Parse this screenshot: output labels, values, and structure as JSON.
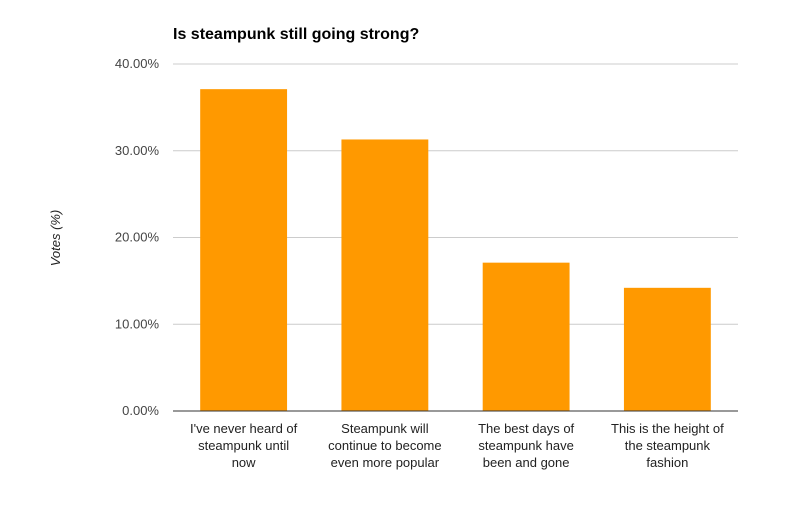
{
  "chart_data": {
    "type": "bar",
    "title": "Is steampunk still going strong?",
    "ylabel": "Votes (%)",
    "xlabel": "",
    "ylim": [
      0,
      40
    ],
    "yticks": [
      "0.00%",
      "10.00%",
      "20.00%",
      "30.00%",
      "40.00%"
    ],
    "ytick_values": [
      0,
      10,
      20,
      30,
      40
    ],
    "categories": [
      [
        "I've never heard of",
        "steampunk until",
        "now"
      ],
      [
        "Steampunk will",
        "continue to become",
        "even more popular"
      ],
      [
        "The best days of",
        "steampunk have",
        "been and gone"
      ],
      [
        "This is the height of",
        "the steampunk",
        "fashion"
      ]
    ],
    "values": [
      37.1,
      31.3,
      17.1,
      14.2
    ],
    "bar_color": "#ff9900",
    "grid": true,
    "legend": "none"
  }
}
